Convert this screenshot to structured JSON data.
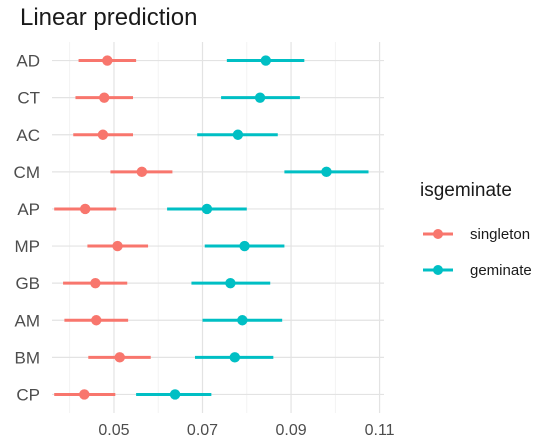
{
  "chart_data": {
    "type": "scatter",
    "title": "Linear prediction",
    "xlabel": "",
    "ylabel": "",
    "xlim": [
      0.036,
      0.111
    ],
    "x_ticks": [
      "0.05",
      "0.07",
      "0.09",
      "0.11"
    ],
    "x_tick_values": [
      0.05,
      0.07,
      0.09,
      0.11
    ],
    "categories": [
      "AD",
      "CT",
      "AC",
      "CM",
      "AP",
      "MP",
      "GB",
      "AM",
      "BM",
      "CP"
    ],
    "grid": true,
    "legend_position": "right",
    "legend_title": "isgeminate",
    "series": [
      {
        "name": "singleton",
        "color": "#F8766D",
        "values": [
          0.0485,
          0.0478,
          0.0475,
          0.0563,
          0.0435,
          0.0508,
          0.0458,
          0.046,
          0.0513,
          0.0433
        ],
        "lower": [
          0.042,
          0.0413,
          0.0408,
          0.0492,
          0.0365,
          0.044,
          0.0385,
          0.0388,
          0.0442,
          0.0365
        ],
        "upper": [
          0.055,
          0.0543,
          0.0543,
          0.0632,
          0.0505,
          0.0577,
          0.053,
          0.0532,
          0.0583,
          0.0503
        ]
      },
      {
        "name": "geminate",
        "color": "#00BFC4",
        "values": [
          0.0843,
          0.083,
          0.078,
          0.098,
          0.071,
          0.0795,
          0.0763,
          0.079,
          0.0773,
          0.0638
        ],
        "lower": [
          0.0755,
          0.0742,
          0.0688,
          0.0885,
          0.062,
          0.0705,
          0.0675,
          0.07,
          0.0683,
          0.055
        ],
        "upper": [
          0.093,
          0.092,
          0.087,
          0.1075,
          0.08,
          0.0885,
          0.0853,
          0.088,
          0.086,
          0.072
        ]
      }
    ]
  }
}
